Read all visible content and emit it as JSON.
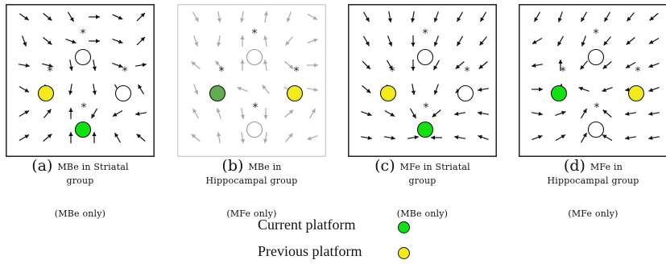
{
  "colors": {
    "current": "#11e011",
    "current_faded": "#5fae4f",
    "previous": "#f2ea1a",
    "arrow": "#111111",
    "arrow_faded": "#a9a9a9"
  },
  "panels": [
    {
      "letter": "(a)",
      "caption": "MBe in Striatal group",
      "caption_lines": [
        "MBe in Striatal",
        "group"
      ],
      "sub": "(MBe only)",
      "bordered": true,
      "faded": false,
      "platforms": [
        {
          "kind": "empty",
          "pos": "top"
        },
        {
          "kind": "empty",
          "pos": "right"
        },
        {
          "kind": "previous",
          "pos": "left"
        },
        {
          "kind": "current",
          "pos": "bottom"
        }
      ],
      "arrow_angles": [
        [
          35,
          40,
          60,
          0,
          25,
          -45
        ],
        [
          70,
          40,
          20,
          0,
          20,
          -45
        ],
        [
          10,
          15,
          80,
          80,
          20,
          -10
        ],
        [
          30,
          60,
          100,
          80,
          60,
          -120
        ],
        [
          -30,
          -50,
          -90,
          120,
          150,
          170
        ],
        [
          -30,
          -40,
          -90,
          -90,
          -120,
          -140
        ]
      ]
    },
    {
      "letter": "(b)",
      "caption": "MBe in Hippocampal group",
      "caption_lines": [
        "MBe in",
        "Hippocampal group"
      ],
      "sub": "(MFe only)",
      "bordered": false,
      "faded": true,
      "platforms": [
        {
          "kind": "empty",
          "pos": "top"
        },
        {
          "kind": "current_faded",
          "pos": "left"
        },
        {
          "kind": "previous",
          "pos": "right"
        },
        {
          "kind": "empty",
          "pos": "bottom"
        }
      ],
      "arrow_angles": [
        [
          60,
          80,
          100,
          -80,
          110,
          30
        ],
        [
          70,
          100,
          -90,
          -100,
          130,
          -20
        ],
        [
          -140,
          -130,
          -90,
          -100,
          40,
          0
        ],
        [
          70,
          90,
          -160,
          -130,
          20,
          10
        ],
        [
          -120,
          -110,
          80,
          90,
          -40,
          -60
        ],
        [
          -140,
          -100,
          80,
          100,
          -50,
          160
        ]
      ]
    },
    {
      "letter": "(c)",
      "caption": "MFe in Striatal group",
      "caption_lines": [
        "MFe in Striatal",
        "group"
      ],
      "sub": "(MBe only)",
      "bordered": true,
      "faded": false,
      "platforms": [
        {
          "kind": "empty",
          "pos": "top"
        },
        {
          "kind": "empty",
          "pos": "right"
        },
        {
          "kind": "previous",
          "pos": "left"
        },
        {
          "kind": "current",
          "pos": "bottom"
        }
      ],
      "arrow_angles": [
        [
          60,
          80,
          100,
          110,
          120,
          120
        ],
        [
          60,
          70,
          90,
          110,
          120,
          130
        ],
        [
          45,
          60,
          90,
          120,
          140,
          140
        ],
        [
          40,
          55,
          80,
          110,
          140,
          170
        ],
        [
          20,
          30,
          60,
          140,
          170,
          -170
        ],
        [
          10,
          10,
          -10,
          180,
          -170,
          -160
        ]
      ]
    },
    {
      "letter": "(d)",
      "caption": "MFe in Hippocampal group",
      "caption_lines": [
        "MFe in",
        "Hippocampal group"
      ],
      "sub": "(MFe only)",
      "bordered": true,
      "faded": false,
      "platforms": [
        {
          "kind": "empty",
          "pos": "top"
        },
        {
          "kind": "current",
          "pos": "left"
        },
        {
          "kind": "previous",
          "pos": "right"
        },
        {
          "kind": "empty",
          "pos": "bottom"
        }
      ],
      "arrow_angles": [
        [
          120,
          110,
          120,
          120,
          130,
          140
        ],
        [
          150,
          120,
          110,
          130,
          140,
          150
        ],
        [
          170,
          -90,
          130,
          140,
          150,
          160
        ],
        [
          0,
          -80,
          -160,
          160,
          170,
          160
        ],
        [
          10,
          -20,
          -60,
          -140,
          170,
          170
        ],
        [
          -20,
          -30,
          -60,
          -150,
          170,
          170
        ]
      ]
    }
  ],
  "legend": {
    "current_label": "Current platform",
    "previous_label": "Previous platform"
  }
}
